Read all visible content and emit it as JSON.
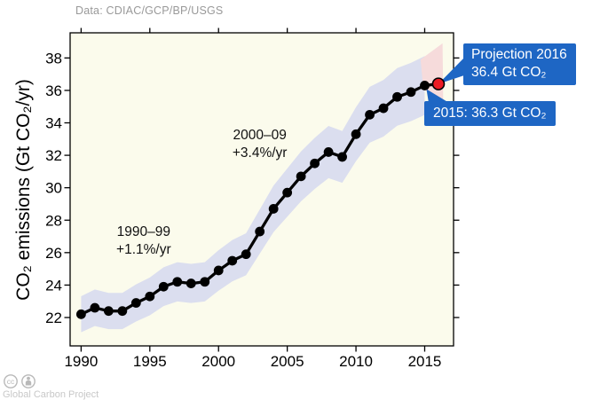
{
  "colors": {
    "background": "#ffffff",
    "plot_bg": "#fbfbec",
    "band": "#dbdeef",
    "projection_band": "#f6dbdb",
    "line": "#000000",
    "projection_point": "#ec1b23",
    "callout_bg": "#1e66c4",
    "callout_text": "#ffffff",
    "source_text": "#999999",
    "watermark_text": "#c8c8c8",
    "watermark_icon": "#b9b9b9"
  },
  "header": {
    "data_source": "Data: CDIAC/GCP/BP/USGS"
  },
  "chart_data": {
    "type": "line",
    "title": "",
    "xlabel": "",
    "ylabel": "CO₂ emissions (Gt CO₂/yr)",
    "y_unit": "Gt CO₂/yr",
    "xlim": [
      1989.2,
      2017.1
    ],
    "ylim": [
      20.25,
      39.55
    ],
    "xticks": [
      1990,
      1995,
      2000,
      2005,
      2010,
      2015
    ],
    "yticks": [
      22,
      24,
      26,
      28,
      30,
      32,
      34,
      36,
      38
    ],
    "grid": false,
    "legend": "none",
    "x": [
      1990,
      1991,
      1992,
      1993,
      1994,
      1995,
      1996,
      1997,
      1998,
      1999,
      2000,
      2001,
      2002,
      2003,
      2004,
      2005,
      2006,
      2007,
      2008,
      2009,
      2010,
      2011,
      2012,
      2013,
      2014,
      2015,
      2016
    ],
    "values": [
      22.2,
      22.6,
      22.4,
      22.4,
      22.9,
      23.3,
      23.9,
      24.2,
      24.1,
      24.2,
      24.9,
      25.5,
      25.9,
      27.3,
      28.7,
      29.7,
      30.7,
      31.5,
      32.2,
      31.9,
      33.3,
      34.5,
      34.9,
      35.6,
      35.9,
      36.3,
      36.4
    ],
    "uncertainty_pct": 5,
    "projection": {
      "year": 2016,
      "value": 36.4,
      "band_polygon": [
        [
          2014.7,
          37.9
        ],
        [
          2016.3,
          38.9
        ],
        [
          2016.35,
          35.15
        ],
        [
          2014.9,
          36.1
        ]
      ]
    },
    "annotations": [
      {
        "line1": "1990–99",
        "line2": "+1.1%/yr",
        "x": 1994.55,
        "y": 26.7
      },
      {
        "line1": "2000–09",
        "line2": "+3.4%/yr",
        "x": 2003.0,
        "y": 32.65
      }
    ],
    "callouts": [
      {
        "line1": "Projection 2016",
        "line2": "36.4 Gt CO₂"
      },
      {
        "line1": "2015: 36.3 Gt CO₂"
      }
    ]
  },
  "watermark": {
    "text": "Global Carbon Project",
    "license_icons": [
      "cc-icon",
      "attribution-icon"
    ]
  }
}
